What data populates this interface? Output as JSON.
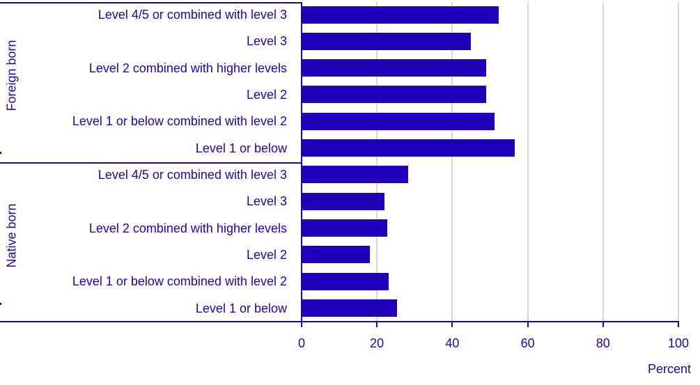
{
  "chart_data": {
    "type": "bar",
    "orientation": "horizontal",
    "title": "",
    "xlabel": "Percent",
    "ylabel": "",
    "xlim": [
      0,
      100
    ],
    "xticks": [
      0,
      20,
      40,
      60,
      80,
      100
    ],
    "grid": true,
    "legend": null,
    "color": "#2200bb",
    "groups": [
      {
        "name": "Foreign born",
        "categories": [
          "Level 4/5 or combined with level 3",
          "Level 3",
          "Level 2 combined with higher levels",
          "Level 2",
          "Level 1 or below combined with level 2",
          "Level 1 or below"
        ],
        "values": [
          52.3,
          44.9,
          49.0,
          49.0,
          51.2,
          56.6
        ]
      },
      {
        "name": "Native born",
        "categories": [
          "Level 4/5 or combined with level 3",
          "Level 3",
          "Level 2 combined with higher levels",
          "Level 2",
          "Level 1 or below combined with level 2",
          "Level 1 or below"
        ],
        "values": [
          28.3,
          22.0,
          22.7,
          18.1,
          23.1,
          25.3
        ]
      }
    ]
  },
  "axis": {
    "xlabel": "Percent",
    "ticks": [
      "0",
      "20",
      "40",
      "60",
      "80",
      "100"
    ]
  }
}
